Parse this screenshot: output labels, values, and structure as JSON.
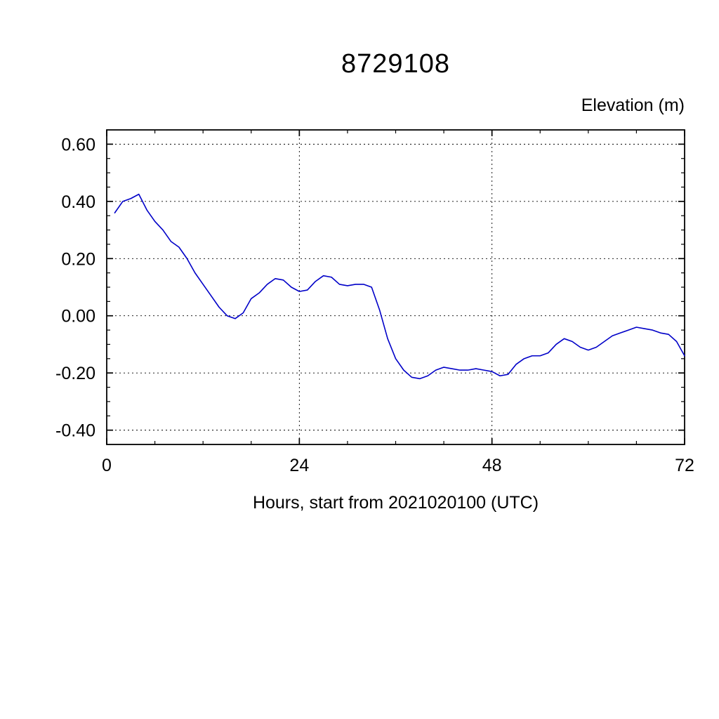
{
  "page": {
    "background_color": "#ffffff"
  },
  "chart_data": {
    "type": "line",
    "title": "8729108",
    "unit_label": "Elevation (m)",
    "xlabel": "Hours, start from 2021020100 (UTC)",
    "ylabel": "",
    "xlim": [
      0,
      72
    ],
    "ylim": [
      -0.45,
      0.65
    ],
    "x_major_ticks": [
      0,
      24,
      48,
      72
    ],
    "x_tick_labels": [
      "0",
      "24",
      "48",
      "72"
    ],
    "x_minor_step": 6,
    "y_major_ticks": [
      0.6,
      0.4,
      0.2,
      0,
      -0.2,
      -0.4
    ],
    "y_tick_labels": [
      "0.60",
      "0.40",
      "0.20",
      "0.00",
      "-0.20",
      "-0.40"
    ],
    "y_minor_step": 0.05,
    "grid": "dashed-at-major-ticks",
    "legend": "none",
    "line_color": "#0000c8",
    "series": [
      {
        "name": "elevation",
        "x": [
          1,
          2,
          3,
          4,
          5,
          6,
          7,
          8,
          9,
          10,
          11,
          12,
          13,
          14,
          15,
          16,
          17,
          18,
          19,
          20,
          21,
          22,
          23,
          24,
          25,
          26,
          27,
          28,
          29,
          30,
          31,
          32,
          33,
          34,
          35,
          36,
          37,
          38,
          39,
          40,
          41,
          42,
          43,
          44,
          45,
          46,
          47,
          48,
          49,
          50,
          51,
          52,
          53,
          54,
          55,
          56,
          57,
          58,
          59,
          60,
          61,
          62,
          63,
          64,
          65,
          66,
          67,
          68,
          69,
          70,
          71,
          72
        ],
        "y": [
          0.36,
          0.4,
          0.41,
          0.425,
          0.37,
          0.33,
          0.3,
          0.26,
          0.24,
          0.2,
          0.15,
          0.11,
          0.07,
          0.03,
          0.0,
          -0.01,
          0.01,
          0.06,
          0.08,
          0.11,
          0.13,
          0.125,
          0.1,
          0.085,
          0.09,
          0.12,
          0.14,
          0.135,
          0.11,
          0.105,
          0.11,
          0.11,
          0.1,
          0.02,
          -0.08,
          -0.15,
          -0.19,
          -0.215,
          -0.22,
          -0.21,
          -0.19,
          -0.18,
          -0.185,
          -0.19,
          -0.19,
          -0.185,
          -0.19,
          -0.195,
          -0.21,
          -0.205,
          -0.17,
          -0.15,
          -0.14,
          -0.14,
          -0.13,
          -0.1,
          -0.08,
          -0.09,
          -0.11,
          -0.12,
          -0.11,
          -0.09,
          -0.07,
          -0.06,
          -0.05,
          -0.04,
          -0.045,
          -0.05,
          -0.06,
          -0.065,
          -0.09,
          -0.14
        ]
      }
    ]
  }
}
